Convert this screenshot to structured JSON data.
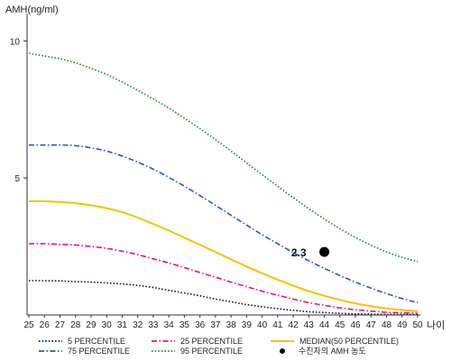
{
  "chart_data": {
    "type": "line",
    "ylabel": "AMH(ng/ml)",
    "xlabel": "나이",
    "x": [
      25,
      26,
      27,
      28,
      29,
      30,
      31,
      32,
      33,
      34,
      35,
      36,
      37,
      38,
      39,
      40,
      41,
      42,
      43,
      44,
      45,
      46,
      47,
      48,
      49,
      50
    ],
    "xlim": [
      25,
      50
    ],
    "ylim": [
      0,
      11
    ],
    "yticks": [
      5,
      10
    ],
    "grid": false,
    "legend_position": "bottom",
    "series": [
      {
        "name": "5 PERCENTILE",
        "color": "#0a1a4a",
        "style": "dotted",
        "values": [
          1.25,
          1.25,
          1.24,
          1.22,
          1.2,
          1.17,
          1.13,
          1.08,
          1.0,
          0.9,
          0.8,
          0.7,
          0.58,
          0.48,
          0.38,
          0.3,
          0.23,
          0.17,
          0.12,
          0.09,
          0.06,
          0.04,
          0.03,
          0.02,
          0.02,
          0.02
        ]
      },
      {
        "name": "25 PERCENTILE",
        "color": "#e0148c",
        "style": "dashdot",
        "values": [
          2.6,
          2.6,
          2.58,
          2.55,
          2.5,
          2.43,
          2.33,
          2.2,
          2.05,
          1.9,
          1.73,
          1.55,
          1.38,
          1.2,
          1.03,
          0.87,
          0.72,
          0.58,
          0.45,
          0.35,
          0.26,
          0.19,
          0.14,
          0.1,
          0.08,
          0.06
        ]
      },
      {
        "name": "MEDIAN(50 PERCENTILE)",
        "color": "#f2c400",
        "style": "solid",
        "values": [
          4.15,
          4.15,
          4.12,
          4.08,
          4.0,
          3.9,
          3.75,
          3.55,
          3.32,
          3.08,
          2.82,
          2.56,
          2.3,
          2.03,
          1.77,
          1.52,
          1.29,
          1.07,
          0.87,
          0.7,
          0.55,
          0.42,
          0.32,
          0.24,
          0.18,
          0.14
        ]
      },
      {
        "name": "75 PERCENTILE",
        "color": "#2a55c8",
        "style": "dashdot",
        "values": [
          6.2,
          6.2,
          6.2,
          6.18,
          6.1,
          5.98,
          5.8,
          5.58,
          5.32,
          5.02,
          4.7,
          4.36,
          4.0,
          3.64,
          3.28,
          2.93,
          2.6,
          2.28,
          1.98,
          1.7,
          1.44,
          1.2,
          0.98,
          0.78,
          0.6,
          0.45
        ]
      },
      {
        "name": "95 PERCENTILE",
        "color": "#1e8a3c",
        "style": "dotted",
        "values": [
          9.55,
          9.45,
          9.35,
          9.2,
          9.0,
          8.78,
          8.5,
          8.2,
          7.88,
          7.55,
          7.18,
          6.8,
          6.4,
          5.98,
          5.55,
          5.12,
          4.7,
          4.28,
          3.88,
          3.5,
          3.15,
          2.83,
          2.55,
          2.3,
          2.1,
          1.95
        ]
      }
    ],
    "patient": {
      "name": "수진자의 AMH 농도",
      "x": 44,
      "y": 2.3,
      "label": "2.3",
      "color": "#000000"
    }
  }
}
